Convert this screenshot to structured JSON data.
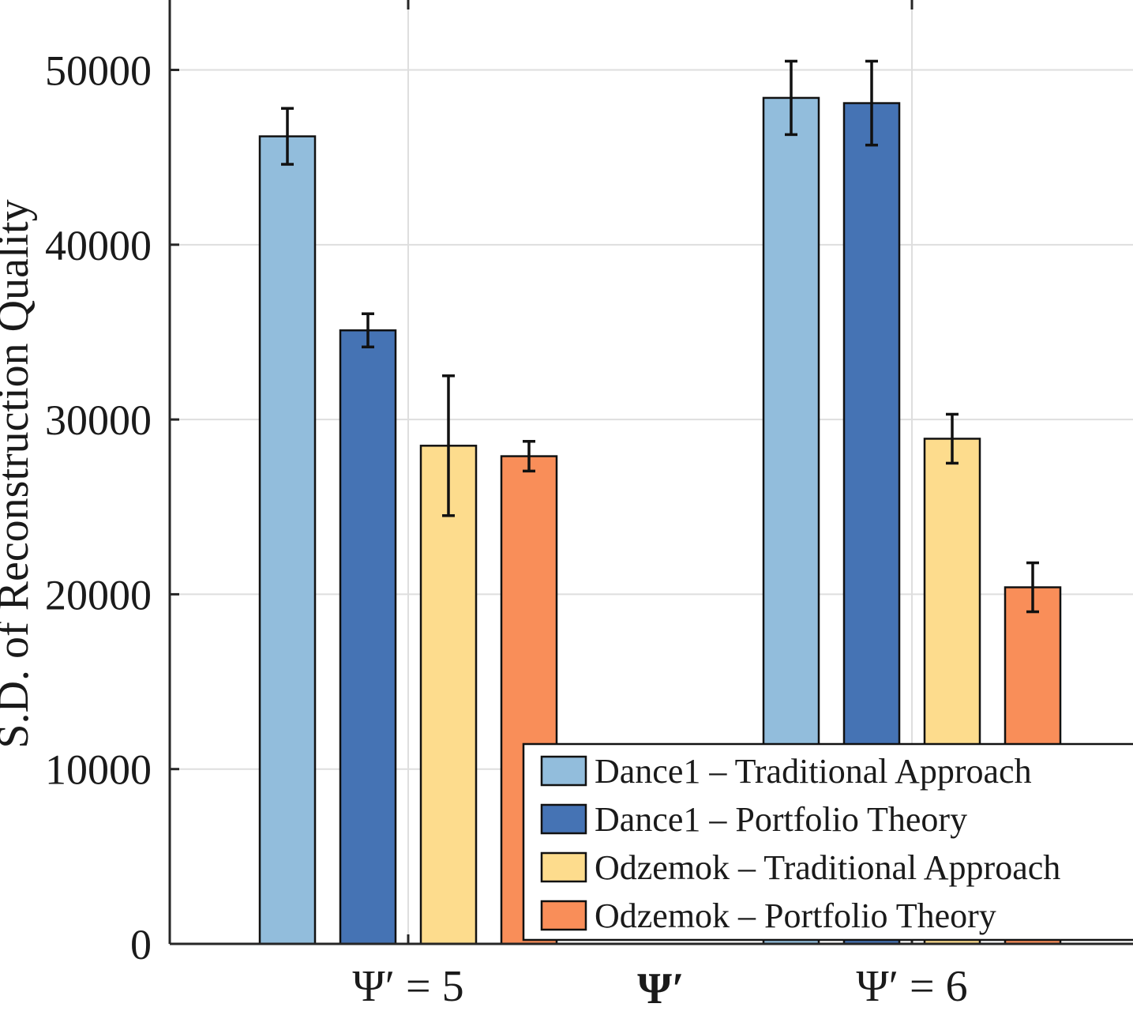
{
  "chart_data": {
    "type": "bar",
    "categories": [
      "Ψ′ = 5",
      "Ψ′ = 6"
    ],
    "xlabel": "Ψ′",
    "ylabel": "S.D. of Reconstruction Quality",
    "ylim": [
      0,
      54000
    ],
    "yticks": [
      0,
      10000,
      20000,
      30000,
      40000,
      50000
    ],
    "ytick_labels": [
      "0",
      "10000",
      "20000",
      "30000",
      "40000",
      "50000"
    ],
    "grid": true,
    "legend_position": "bottom-right",
    "series": [
      {
        "name": "Dance1 – Traditional Approach",
        "color": "#92bddc",
        "values": [
          46200,
          48400
        ],
        "errors": [
          1600,
          2100
        ]
      },
      {
        "name": "Dance1 – Portfolio Theory",
        "color": "#4573b4",
        "values": [
          35100,
          48100
        ],
        "errors": [
          950,
          2400
        ]
      },
      {
        "name": "Odzemok – Traditional Approach",
        "color": "#fddc8d",
        "values": [
          28500,
          28900
        ],
        "errors": [
          4000,
          1400
        ]
      },
      {
        "name": "Odzemok – Portfolio Theory",
        "color": "#f98e59",
        "values": [
          27900,
          20400
        ],
        "errors": [
          850,
          1400
        ]
      }
    ]
  }
}
